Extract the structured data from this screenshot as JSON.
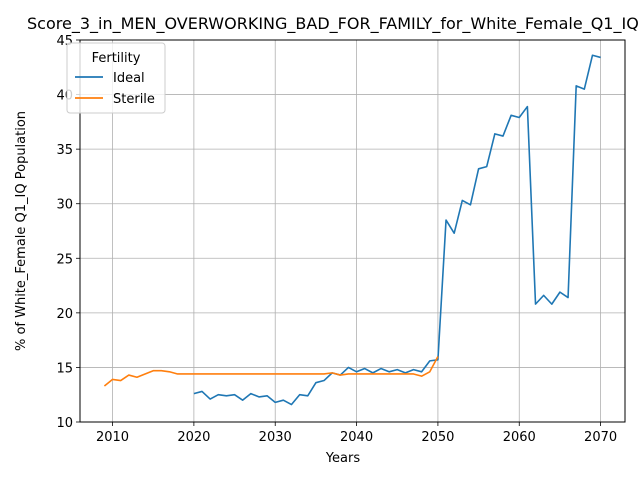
{
  "chart_data": {
    "type": "line",
    "title": "Score_3_in_MEN_OVERWORKING_BAD_FOR_FAMILY_for_White_Female_Q1_IQ",
    "xlabel": "Years",
    "ylabel": "% of White_Female Q1_IQ Population",
    "xlim": [
      2006,
      2073
    ],
    "ylim": [
      10,
      45
    ],
    "xticks": [
      2010,
      2020,
      2030,
      2040,
      2050,
      2060,
      2070
    ],
    "yticks": [
      10,
      15,
      20,
      25,
      30,
      35,
      40,
      45
    ],
    "grid": true,
    "legend": {
      "title": "Fertility",
      "placement": "top-left"
    },
    "series": [
      {
        "name": "Ideal",
        "color": "#1f77b4",
        "x": [
          2020,
          2021,
          2022,
          2023,
          2024,
          2025,
          2026,
          2027,
          2028,
          2029,
          2030,
          2031,
          2032,
          2033,
          2034,
          2035,
          2036,
          2037,
          2038,
          2039,
          2040,
          2041,
          2042,
          2043,
          2044,
          2045,
          2046,
          2047,
          2048,
          2049,
          2050,
          2051,
          2052,
          2053,
          2054,
          2055,
          2056,
          2057,
          2058,
          2059,
          2060,
          2061,
          2062,
          2063,
          2064,
          2065,
          2066,
          2067,
          2068,
          2069,
          2070
        ],
        "y": [
          12.6,
          12.8,
          12.1,
          12.5,
          12.4,
          12.5,
          12.0,
          12.6,
          12.3,
          12.4,
          11.8,
          12.0,
          11.6,
          12.5,
          12.4,
          13.6,
          13.8,
          14.5,
          14.3,
          15.0,
          14.6,
          14.9,
          14.5,
          14.9,
          14.6,
          14.8,
          14.5,
          14.8,
          14.6,
          15.6,
          15.7,
          28.5,
          27.3,
          30.3,
          29.9,
          33.2,
          33.4,
          36.4,
          36.2,
          38.1,
          37.9,
          38.9,
          20.8,
          21.6,
          20.8,
          21.9,
          21.4,
          40.8,
          40.5,
          43.6,
          43.4
        ]
      },
      {
        "name": "Sterile",
        "color": "#ff7f0e",
        "x": [
          2009,
          2010,
          2011,
          2012,
          2013,
          2014,
          2015,
          2016,
          2017,
          2018,
          2019,
          2020,
          2021,
          2022,
          2023,
          2024,
          2025,
          2026,
          2027,
          2028,
          2029,
          2030,
          2031,
          2032,
          2033,
          2034,
          2035,
          2036,
          2037,
          2038,
          2039,
          2040,
          2041,
          2042,
          2043,
          2044,
          2045,
          2046,
          2047,
          2048,
          2049,
          2050
        ],
        "y": [
          13.3,
          13.9,
          13.8,
          14.3,
          14.1,
          14.4,
          14.7,
          14.7,
          14.6,
          14.4,
          14.4,
          14.4,
          14.4,
          14.4,
          14.4,
          14.4,
          14.4,
          14.4,
          14.4,
          14.4,
          14.4,
          14.4,
          14.4,
          14.4,
          14.4,
          14.4,
          14.4,
          14.4,
          14.5,
          14.3,
          14.4,
          14.4,
          14.4,
          14.4,
          14.4,
          14.4,
          14.4,
          14.4,
          14.4,
          14.2,
          14.6,
          16.0
        ]
      }
    ]
  }
}
